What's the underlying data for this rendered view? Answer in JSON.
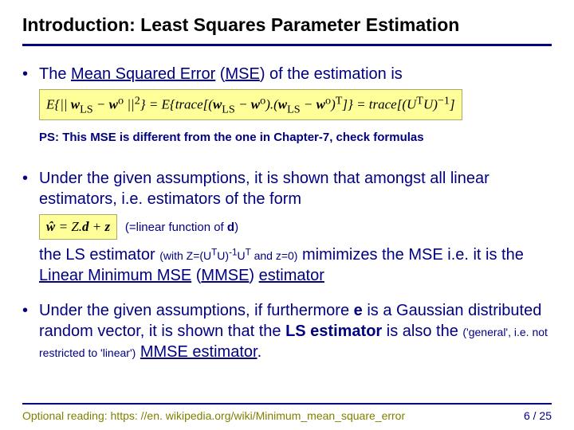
{
  "title": "Introduction: Least Squares Parameter Estimation",
  "bullets": {
    "b1": {
      "text": "The ",
      "mse_label": "Mean Squared Error",
      "mse_abbrev": "MSE",
      "tail": " of the estimation is"
    },
    "formula1": "E{|| wLS − w° ||²} = E{trace[(wLS − w°).(wLS − w°)ᵀ]} = trace[(UᵀU)⁻¹]",
    "ps": "PS: This MSE is different from the one in Chapter-7, check formulas",
    "b2": {
      "line1": "Under the given assumptions, it is shown that amongst all linear estimators, i.e. estimators of the form"
    },
    "formula2": "ŵ = Z.d + z",
    "formula2_note": "(=linear function of d)",
    "b2_cont": {
      "pre": "the LS estimator ",
      "paren": "(with Z=(UᵀU)⁻¹Uᵀ and z=0)",
      "mid": " mimimizes the MSE i.e. it is the ",
      "underline": "Linear Minimum MSE",
      "abbrev_open": " (",
      "abbrev": "MMSE",
      "abbrev_close": ") ",
      "tail": "estimator"
    },
    "b3": {
      "line": "Under the given assumptions, if furthermore e is a Gaussian distributed random vector, it is shown that the LS estimator is also the ",
      "paren": "('general', i.e. not restricted to 'linear')",
      "tail_u": "MMSE estimator",
      "period": "."
    }
  },
  "footer": {
    "optional": "Optional reading: https: //en. wikipedia.org/wiki/Minimum_mean_square_error",
    "page": "6 / 25"
  },
  "colors": {
    "text": "#000080",
    "title": "#000000",
    "formula_bg": "#ffff99",
    "optional": "#808000"
  }
}
